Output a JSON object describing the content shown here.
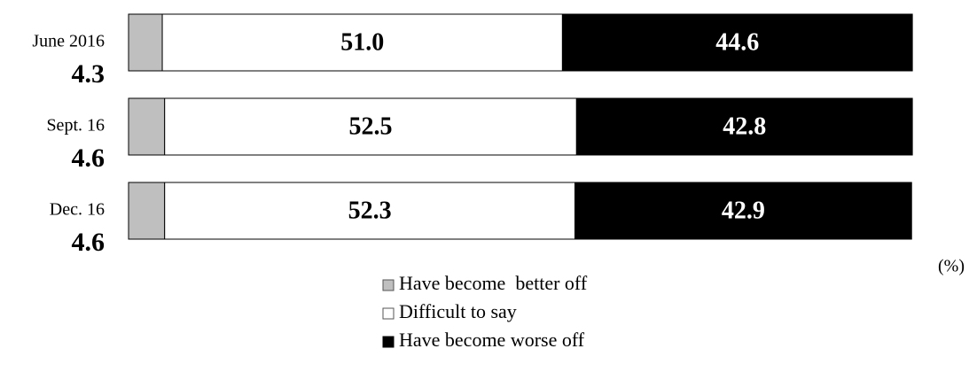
{
  "chart_data": {
    "type": "stacked-bar",
    "orientation": "horizontal",
    "categories": [
      "June 2016",
      "Sept. 16",
      "Dec. 16"
    ],
    "series": [
      {
        "name": "Have become  better off",
        "color": "#bfbfbf",
        "values": [
          4.3,
          4.6,
          4.6
        ]
      },
      {
        "name": "Difficult to say",
        "color": "#ffffff",
        "values": [
          51.0,
          52.5,
          52.3
        ],
        "value_labels": [
          "51.0",
          "52.5",
          "52.3"
        ]
      },
      {
        "name": "Have become worse off",
        "color": "#000000",
        "values": [
          44.6,
          42.8,
          42.9
        ]
      }
    ],
    "xlim": [
      0,
      100
    ],
    "unit": "(%)"
  }
}
